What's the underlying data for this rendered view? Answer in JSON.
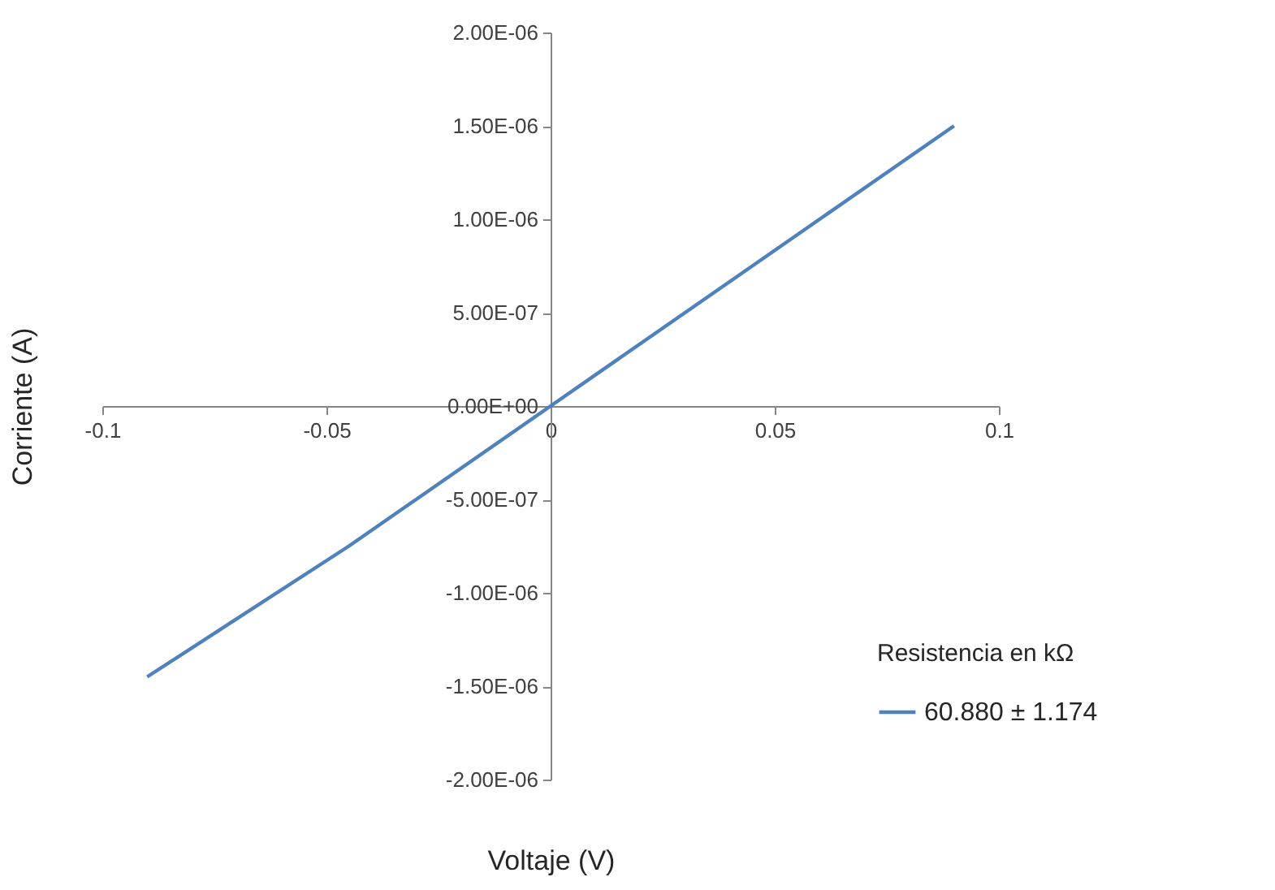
{
  "chart_data": {
    "type": "line",
    "xlabel": "Voltaje (V)",
    "ylabel": "Corriente (A)",
    "legend_title": "Resistencia en kΩ",
    "x": [
      -0.09,
      -0.045,
      0,
      0.045,
      0.09
    ],
    "series": [
      {
        "name": "60.880 ± 1.174",
        "color": "#4f81bd",
        "values": [
          -1.45e-06,
          -7.5e-07,
          0,
          7.5e-07,
          1.5e-06
        ]
      }
    ],
    "xlim": [
      -0.1,
      0.1
    ],
    "xticks": [
      -0.1,
      -0.05,
      0,
      0.05,
      0.1
    ],
    "ylim": [
      -2e-06,
      2e-06
    ],
    "yticks": [
      {
        "value": -2e-06,
        "label": "-2.00E-06"
      },
      {
        "value": -1.5e-06,
        "label": "-1.50E-06"
      },
      {
        "value": -1e-06,
        "label": "-1.00E-06"
      },
      {
        "value": -5e-07,
        "label": "-5.00E-07"
      },
      {
        "value": 0,
        "label": "0.00E+00"
      },
      {
        "value": 5e-07,
        "label": "5.00E-07"
      },
      {
        "value": 1e-06,
        "label": "1.00E-06"
      },
      {
        "value": 1.5e-06,
        "label": "1.50E-06"
      },
      {
        "value": 2e-06,
        "label": "2.00E-06"
      }
    ],
    "grid": false,
    "legend": "bottom right",
    "marker": "none",
    "line_style": "solid"
  }
}
